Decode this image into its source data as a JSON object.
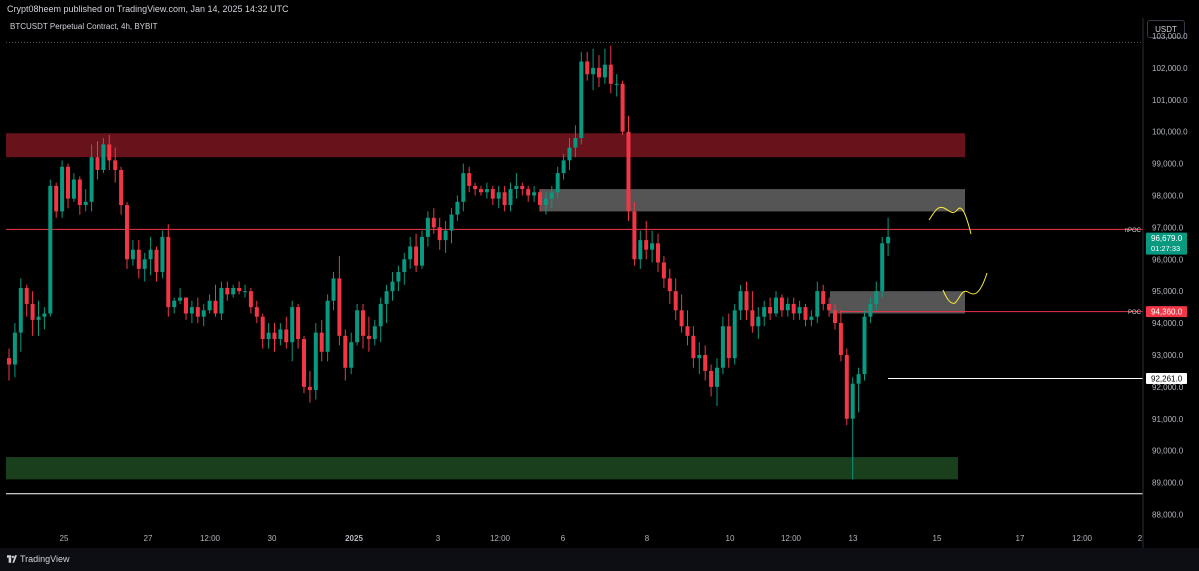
{
  "header": {
    "published": "Crypt08heem published on TradingView.com, Jan 14, 2025 14:32 UTC",
    "symbol": "BTCUSDT Perpetual Contract, 4h, BYBIT",
    "currency": "USDT"
  },
  "footer": {
    "brand": "TradingView"
  },
  "chart_data": {
    "type": "candlestick",
    "symbol": "BTCUSDT Perpetual Contract",
    "timeframe": "4h",
    "exchange": "BYBIT",
    "ylim": [
      87200,
      103500
    ],
    "y_ticks": [
      "103,000.0",
      "102,000.0",
      "101,000.0",
      "100,000.0",
      "99,000.0",
      "98,000.0",
      "97,000.0",
      "96,000.0",
      "95,000.0",
      "94,000.0",
      "93,000.0",
      "92,000.0",
      "91,000.0",
      "90,000.0",
      "89,000.0",
      "88,000.0"
    ],
    "x_ticks": [
      "25",
      "27",
      "12:00",
      "30",
      "2025",
      "3",
      "12:00",
      "6",
      "8",
      "10",
      "12:00",
      "13",
      "15",
      "17",
      "12:00",
      "2"
    ],
    "colors": {
      "up": "#089981",
      "down": "#f23645",
      "background": "#000000"
    },
    "price_labels": [
      {
        "tag": "nPOC",
        "value": 96938,
        "text": ""
      },
      {
        "tag": "",
        "value": 96679,
        "text": "96,679.0",
        "sub": "01:27:33",
        "color": "#089981"
      },
      {
        "tag": "POC",
        "value": 94360,
        "text": "94,360.0",
        "color": "#f23645"
      },
      {
        "tag": "",
        "value": 92261,
        "text": "92,261.0",
        "color": "#ffffff"
      }
    ],
    "levels": [
      {
        "value": 102800,
        "style": "dotted"
      },
      {
        "value": 96938,
        "color": "#f23645"
      },
      {
        "value": 94360,
        "color": "#f23645"
      },
      {
        "value": 92261,
        "color": "#ffffff"
      },
      {
        "value": 88650,
        "color": "#ffffff"
      }
    ],
    "zones": [
      {
        "name": "resistance",
        "from": 99200,
        "to": 99950,
        "color": "#7a1620"
      },
      {
        "name": "upper-gray",
        "from": 97500,
        "to": 98200,
        "color": "#9a9a9a"
      },
      {
        "name": "lower-gray",
        "from": 94300,
        "to": 95000,
        "color": "#9a9a9a"
      },
      {
        "name": "support",
        "from": 89100,
        "to": 89800,
        "color": "#1d4a22"
      }
    ],
    "candles": [
      [
        92900,
        93200,
        92200,
        92700
      ],
      [
        92700,
        94000,
        92300,
        93700
      ],
      [
        93700,
        95400,
        93100,
        95100
      ],
      [
        95100,
        95200,
        94200,
        94600
      ],
      [
        94600,
        95000,
        93600,
        94100
      ],
      [
        94100,
        94700,
        93600,
        94200
      ],
      [
        94200,
        94500,
        93800,
        94300
      ],
      [
        94300,
        98500,
        94200,
        98300
      ],
      [
        98300,
        98400,
        97300,
        97500
      ],
      [
        97500,
        99100,
        97300,
        98900
      ],
      [
        98900,
        99000,
        97600,
        97900
      ],
      [
        97900,
        98700,
        97800,
        98500
      ],
      [
        98500,
        98600,
        97400,
        97700
      ],
      [
        97700,
        98200,
        97500,
        97800
      ],
      [
        97800,
        99600,
        97500,
        99200
      ],
      [
        99200,
        99700,
        98500,
        98800
      ],
      [
        98800,
        99800,
        98700,
        99600
      ],
      [
        99600,
        99900,
        98800,
        99100
      ],
      [
        99100,
        99500,
        98400,
        98800
      ],
      [
        98800,
        98900,
        97400,
        97700
      ],
      [
        97700,
        97800,
        95700,
        96000
      ],
      [
        96000,
        96600,
        95800,
        96300
      ],
      [
        96300,
        96600,
        95400,
        95700
      ],
      [
        95700,
        96200,
        95300,
        96000
      ],
      [
        96000,
        96700,
        95500,
        96300
      ],
      [
        96300,
        96400,
        95300,
        95600
      ],
      [
        95600,
        96900,
        95400,
        96700
      ],
      [
        96700,
        97100,
        94200,
        94500
      ],
      [
        94500,
        94800,
        94300,
        94700
      ],
      [
        94700,
        95100,
        94600,
        94800
      ],
      [
        94800,
        94800,
        94100,
        94300
      ],
      [
        94300,
        94700,
        94000,
        94500
      ],
      [
        94500,
        94800,
        94000,
        94200
      ],
      [
        94200,
        94600,
        93900,
        94400
      ],
      [
        94400,
        94900,
        94300,
        94700
      ],
      [
        94700,
        95200,
        94200,
        94300
      ],
      [
        94300,
        95300,
        94100,
        95100
      ],
      [
        95100,
        95300,
        94700,
        94900
      ],
      [
        94900,
        95200,
        94800,
        95100
      ],
      [
        95100,
        95300,
        94900,
        95000
      ],
      [
        95000,
        95200,
        94800,
        95000
      ],
      [
        95000,
        95100,
        94300,
        94500
      ],
      [
        94500,
        94700,
        94000,
        94200
      ],
      [
        94200,
        94300,
        93200,
        93500
      ],
      [
        93500,
        94000,
        93200,
        93700
      ],
      [
        93700,
        94000,
        93100,
        93500
      ],
      [
        93500,
        94000,
        93300,
        93800
      ],
      [
        93800,
        94200,
        93200,
        93400
      ],
      [
        93400,
        94700,
        92800,
        94500
      ],
      [
        94500,
        94600,
        93200,
        93500
      ],
      [
        93500,
        93600,
        91800,
        92000
      ],
      [
        92000,
        92500,
        91500,
        91900
      ],
      [
        91900,
        94000,
        91600,
        93700
      ],
      [
        93700,
        94100,
        92800,
        93100
      ],
      [
        93100,
        94900,
        92800,
        94700
      ],
      [
        94700,
        95600,
        94400,
        95400
      ],
      [
        95400,
        96100,
        93300,
        93600
      ],
      [
        93600,
        93800,
        92200,
        92600
      ],
      [
        92600,
        93700,
        92400,
        93400
      ],
      [
        93400,
        94600,
        93300,
        94400
      ],
      [
        94400,
        94600,
        93200,
        93600
      ],
      [
        93600,
        94200,
        93100,
        93500
      ],
      [
        93500,
        94100,
        93300,
        93900
      ],
      [
        93900,
        94800,
        93400,
        94600
      ],
      [
        94600,
        95200,
        94000,
        95000
      ],
      [
        95000,
        95600,
        94700,
        95300
      ],
      [
        95300,
        95800,
        95000,
        95600
      ],
      [
        95600,
        96200,
        95200,
        96000
      ],
      [
        96000,
        96700,
        95700,
        96400
      ],
      [
        96400,
        96800,
        95600,
        95800
      ],
      [
        95800,
        96900,
        95700,
        96700
      ],
      [
        96700,
        97500,
        96400,
        97300
      ],
      [
        97300,
        97600,
        96800,
        97000
      ],
      [
        97000,
        97300,
        96300,
        96600
      ],
      [
        96600,
        97200,
        96200,
        96900
      ],
      [
        96900,
        97600,
        96500,
        97400
      ],
      [
        97400,
        98000,
        97200,
        97800
      ],
      [
        97800,
        99000,
        97500,
        98700
      ],
      [
        98700,
        98900,
        98100,
        98300
      ],
      [
        98300,
        98400,
        98000,
        98200
      ],
      [
        98200,
        98300,
        98000,
        98100
      ],
      [
        98100,
        98400,
        97900,
        98200
      ],
      [
        98200,
        98300,
        97700,
        97900
      ],
      [
        97900,
        98300,
        97600,
        98100
      ],
      [
        98100,
        98300,
        97500,
        97700
      ],
      [
        97700,
        98400,
        97500,
        98200
      ],
      [
        98200,
        98700,
        97900,
        98300
      ],
      [
        98300,
        98400,
        98000,
        98200
      ],
      [
        98200,
        98300,
        97800,
        98000
      ],
      [
        98000,
        98300,
        97800,
        98100
      ],
      [
        98100,
        98200,
        97500,
        97700
      ],
      [
        97700,
        98100,
        97400,
        97900
      ],
      [
        97900,
        98300,
        97600,
        98100
      ],
      [
        98100,
        98900,
        97900,
        98700
      ],
      [
        98700,
        99300,
        98500,
        99100
      ],
      [
        99100,
        99800,
        98800,
        99500
      ],
      [
        99500,
        100200,
        99200,
        99800
      ],
      [
        99800,
        102500,
        99600,
        102200
      ],
      [
        102200,
        102500,
        101600,
        101800
      ],
      [
        101800,
        102600,
        101300,
        102000
      ],
      [
        102000,
        102400,
        101400,
        101700
      ],
      [
        101700,
        102600,
        101500,
        102100
      ],
      [
        102100,
        102700,
        101200,
        101500
      ],
      [
        101500,
        101800,
        101100,
        101500
      ],
      [
        101500,
        101600,
        99900,
        100000
      ],
      [
        100000,
        100500,
        97200,
        97500
      ],
      [
        97500,
        97800,
        95800,
        96000
      ],
      [
        96000,
        96900,
        95700,
        96600
      ],
      [
        96600,
        97200,
        96000,
        96300
      ],
      [
        96300,
        96900,
        95900,
        96500
      ],
      [
        96500,
        96800,
        95600,
        95900
      ],
      [
        95900,
        96100,
        95100,
        95400
      ],
      [
        95400,
        95700,
        94600,
        95000
      ],
      [
        95000,
        95400,
        94100,
        94400
      ],
      [
        94400,
        94900,
        93700,
        93900
      ],
      [
        93900,
        94400,
        93300,
        93600
      ],
      [
        93600,
        93900,
        92600,
        92900
      ],
      [
        92900,
        93400,
        92400,
        93000
      ],
      [
        93000,
        93300,
        92200,
        92500
      ],
      [
        92500,
        92700,
        91700,
        92000
      ],
      [
        92000,
        92900,
        91400,
        92600
      ],
      [
        92600,
        94200,
        92400,
        93900
      ],
      [
        93900,
        94300,
        92600,
        92900
      ],
      [
        92900,
        94600,
        92700,
        94400
      ],
      [
        94400,
        95200,
        94100,
        95000
      ],
      [
        95000,
        95300,
        94100,
        94400
      ],
      [
        94400,
        95000,
        93700,
        93900
      ],
      [
        93900,
        94500,
        93500,
        94200
      ],
      [
        94200,
        94700,
        93900,
        94500
      ],
      [
        94500,
        94800,
        94100,
        94300
      ],
      [
        94300,
        95000,
        94200,
        94800
      ],
      [
        94800,
        94900,
        94200,
        94400
      ],
      [
        94400,
        94800,
        94200,
        94600
      ],
      [
        94600,
        94800,
        94100,
        94300
      ],
      [
        94300,
        94700,
        94100,
        94500
      ],
      [
        94500,
        94600,
        93900,
        94100
      ],
      [
        94100,
        94400,
        93900,
        94200
      ],
      [
        94200,
        95300,
        94000,
        95000
      ],
      [
        95000,
        95200,
        94400,
        94600
      ],
      [
        94600,
        94800,
        94200,
        94400
      ],
      [
        94400,
        94600,
        93800,
        94000
      ],
      [
        94000,
        94400,
        92800,
        93000
      ],
      [
        93000,
        93200,
        90800,
        91000
      ],
      [
        91000,
        92300,
        89100,
        92100
      ],
      [
        92100,
        92600,
        91200,
        92400
      ],
      [
        92400,
        94400,
        92200,
        94200
      ],
      [
        94200,
        94800,
        94000,
        94600
      ],
      [
        94600,
        95300,
        94400,
        95000
      ],
      [
        95000,
        96700,
        94800,
        96500
      ],
      [
        96500,
        97300,
        96100,
        96700
      ]
    ]
  }
}
